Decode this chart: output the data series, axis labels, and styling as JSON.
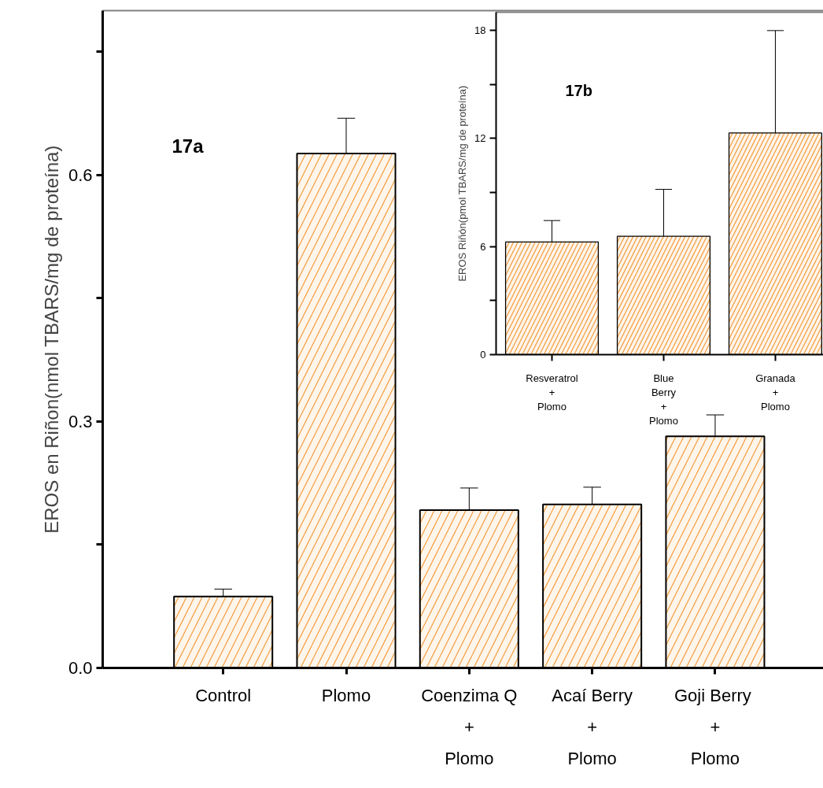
{
  "chart_data": [
    {
      "type": "bar",
      "title": "17a",
      "ylabel": "EROS en Riñon(nmol TBARS/mg de proteína)",
      "categories": [
        "Control",
        "Plomo",
        "Coenzima Q\n+\nPlomo",
        "Acaí Berry\n+\nPlomo",
        "Goji  Berry\n+\nPlomo"
      ],
      "values": [
        0.087,
        0.626,
        0.192,
        0.199,
        0.282
      ],
      "errors": [
        [
          0.087,
          0.096
        ],
        [
          0.626,
          0.669
        ],
        [
          0.192,
          0.219
        ],
        [
          0.199,
          0.22
        ],
        [
          0.282,
          0.308
        ]
      ],
      "color": "#f39a3a",
      "ylim": [
        0,
        0.8
      ],
      "yticks": [
        {
          "value": 0,
          "label": "0.0"
        },
        {
          "value": 0.15,
          "label": null
        },
        {
          "value": 0.3,
          "label": "0.3"
        },
        {
          "value": 0.45,
          "label": null
        },
        {
          "value": 0.6,
          "label": "0.6"
        },
        {
          "value": 0.75,
          "label": null
        }
      ]
    },
    {
      "type": "bar",
      "title": "17b",
      "ylabel": "EROS Riñón(pmol TBARS/mg de proteína)",
      "categories": [
        "Resveratrol\n+\nPlomo",
        "Blue\nBerry\n+\nPlomo",
        "Granada\n+\nPlomo"
      ],
      "values": [
        6.25,
        6.57,
        12.3
      ],
      "errors": [
        [
          6.25,
          7.44
        ],
        [
          6.57,
          9.17
        ],
        [
          12.3,
          17.98
        ]
      ],
      "color": "#f39a3a",
      "ylim": [
        0,
        19
      ],
      "yticks": [
        0,
        {
          "value": 3,
          "label": null
        },
        6,
        {
          "value": 9,
          "label": null
        },
        12,
        {
          "value": 15,
          "label": null
        },
        18
      ]
    }
  ]
}
